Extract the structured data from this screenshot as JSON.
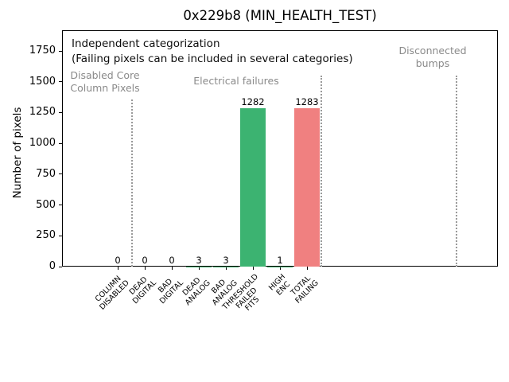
{
  "chart_data": {
    "type": "bar",
    "title": "0x229b8 (MIN_HEALTH_TEST)",
    "ylabel": "Number of pixels",
    "xlabel": "",
    "categories": [
      "COLUMN\nDISABLED",
      "DEAD\nDIGITAL",
      "BAD\nDIGITAL",
      "DEAD\nANALOG",
      "BAD\nANALOG",
      "THRESHOLD\nFAILED\nFITS",
      "HIGH\nENC",
      "TOTAL\nFAILING"
    ],
    "values": [
      0,
      0,
      0,
      3,
      3,
      1282,
      1,
      1283
    ],
    "value_labels": [
      "0",
      "0",
      "0",
      "3",
      "3",
      "1282",
      "1",
      "1283"
    ],
    "bar_colors": [
      "#3cb371",
      "#3cb371",
      "#3cb371",
      "#3cb371",
      "#3cb371",
      "#3cb371",
      "#3cb371",
      "#f08080"
    ],
    "yticks": [
      0,
      250,
      500,
      750,
      1000,
      1250,
      1500,
      1750
    ],
    "ylim": [
      0,
      1918
    ],
    "grid": false,
    "legend": null,
    "annotations": [
      "Independent categorization",
      "(Failing pixels can be included in several categories)"
    ],
    "sections": [
      {
        "label": "Disabled Core\nColumn Pixels"
      },
      {
        "label": "Electrical failures"
      },
      {
        "label": "Disconnected\nbumps"
      }
    ],
    "colors": {
      "pass_bar": "#3cb371",
      "fail_bar": "#f08080",
      "section_text": "#8a8a8a",
      "divider": "#9a9a9a",
      "axis": "#000000"
    }
  }
}
